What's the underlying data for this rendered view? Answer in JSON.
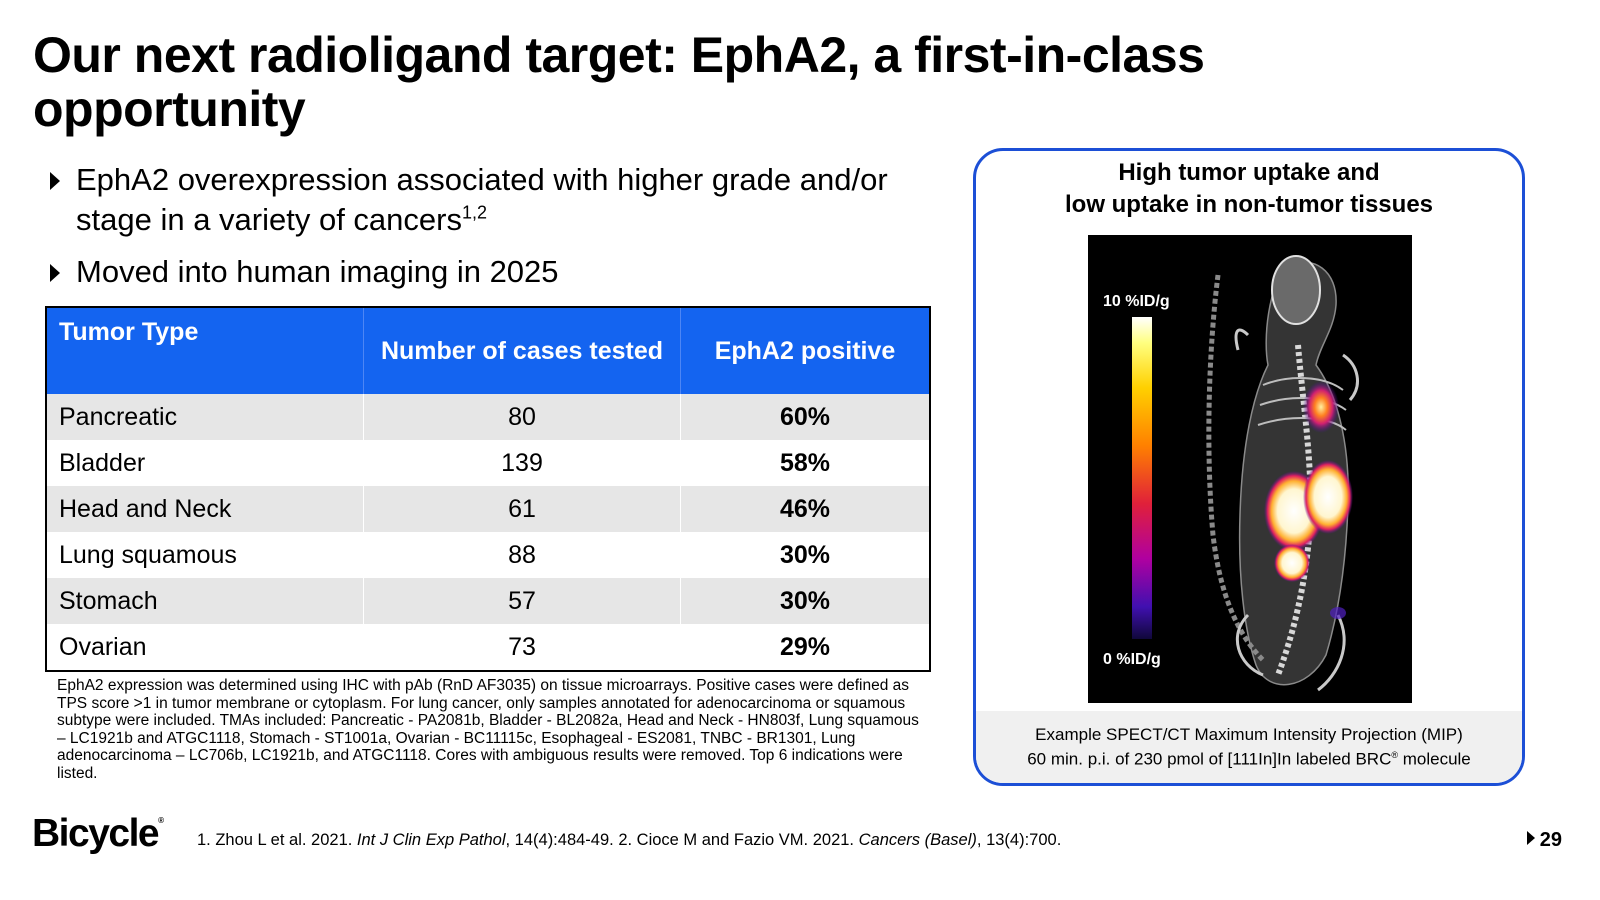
{
  "slide": {
    "title": "Our next radioligand target: EphA2, a first-in-class opportunity",
    "page_number": "29"
  },
  "bullets": [
    {
      "text": "EphA2 overexpression associated with higher grade and/or stage in a variety of cancers",
      "superscript": "1,2"
    },
    {
      "text": "Moved into human imaging in 2025"
    }
  ],
  "table": {
    "headers": [
      "Tumor Type",
      "Number of cases tested",
      "EphA2 positive"
    ],
    "rows": [
      {
        "tumor": "Pancreatic",
        "cases": "80",
        "positive": "60%"
      },
      {
        "tumor": "Bladder",
        "cases": "139",
        "positive": "58%"
      },
      {
        "tumor": "Head and Neck",
        "cases": "61",
        "positive": "46%"
      },
      {
        "tumor": "Lung squamous",
        "cases": "88",
        "positive": "30%"
      },
      {
        "tumor": "Stomach",
        "cases": "57",
        "positive": "30%"
      },
      {
        "tumor": "Ovarian",
        "cases": "73",
        "positive": "29%"
      }
    ],
    "header_color": "#1464f0"
  },
  "footnote": "EphA2 expression was determined using IHC with pAb (RnD AF3035) on tissue microarrays. Positive cases were defined as TPS score >1 in tumor membrane or cytoplasm. For lung cancer, only samples annotated for adenocarcinoma or squamous subtype were included. TMAs included: Pancreatic - PA2081b, Bladder - BL2082a, Head and Neck - HN803f, Lung squamous – LC1921b and ATGC1118, Stomach - ST1001a, Ovarian - BC11115c, Esophageal - ES2081, TNBC - BR1301, Lung adenocarcinoma – LC706b, LC1921b, and ATGC1118. Cores with ambiguous results were removed. Top 6 indications were listed.",
  "panel": {
    "title_line1": "High tumor uptake and",
    "title_line2": "low uptake in non-tumor tissues",
    "scale_max": "10 %ID/g",
    "scale_min": "0 %ID/g",
    "caption_line1": "Example SPECT/CT Maximum Intensity Projection (MIP)",
    "caption_line2_prefix": "60 min. p.i. of 230 pmol of [111In]In labeled BRC",
    "caption_line2_sup": "®",
    "caption_line2_suffix": " molecule",
    "border_color": "#1c4fd6"
  },
  "footer": {
    "logo_text": "Bicycle",
    "logo_mark": "®",
    "refs": {
      "r1_prefix": "1. Zhou L et al. 2021. ",
      "r1_journal": "Int J Clin Exp Pathol",
      "r1_suffix": ", 14(4):484-49. 2. Cioce M and Fazio VM. 2021. ",
      "r2_journal": "Cancers (Basel)",
      "r2_suffix": ", 13(4):700."
    }
  }
}
